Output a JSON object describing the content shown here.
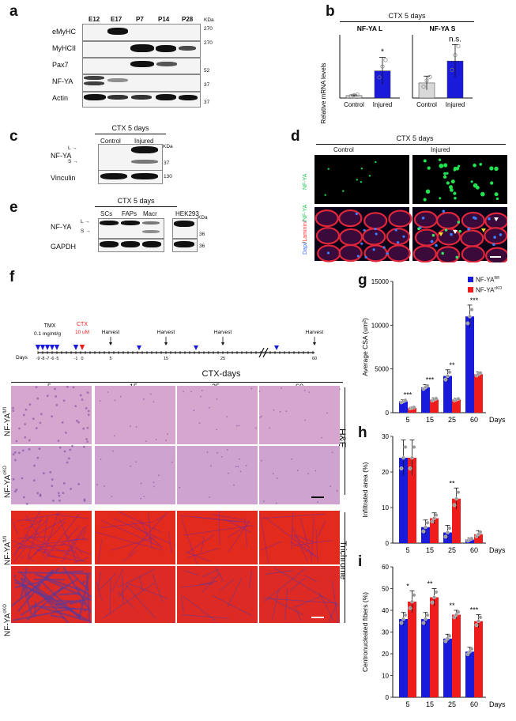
{
  "panel_labels": {
    "a": "a",
    "b": "b",
    "c": "c",
    "d": "d",
    "e": "e",
    "f": "f",
    "g": "g",
    "h": "h",
    "i": "i"
  },
  "panel_a": {
    "lanes": [
      "E12",
      "E17",
      "P7",
      "P14",
      "P28"
    ],
    "kda_label": "KDa",
    "rows": [
      "eMyHC",
      "MyHCII",
      "Pax7",
      "NF-YA",
      "Actin"
    ],
    "markers": [
      "270",
      "270",
      "52",
      "37",
      "37"
    ]
  },
  "panel_b": {
    "title": "CTX 5 days",
    "ylabel": "Relative mRNA levels"
  },
  "panel_c": {
    "title": "CTX 5 days",
    "lanes": [
      "Control",
      "Injured"
    ],
    "kda_label": "KDa",
    "rows": [
      "NF-YA",
      "Vinculin"
    ],
    "isoforms": [
      "L",
      "S"
    ],
    "markers": [
      "37",
      "130"
    ]
  },
  "panel_d": {
    "title": "CTX 5 days",
    "columns": [
      "Control",
      "Injured"
    ],
    "row_top": "NF-YA",
    "row_bottom_parts": [
      "Dapi",
      "/",
      "Laminin",
      "/",
      "NF-YA"
    ]
  },
  "panel_e": {
    "title": "CTX 5 days",
    "lanes": [
      "SCs",
      "FAPs",
      "Macr",
      "HEK293"
    ],
    "kda_label": "KDa",
    "rows": [
      "NF-YA",
      "GAPDH"
    ],
    "isoforms": [
      "L",
      "S"
    ],
    "markers": [
      "36",
      "36"
    ]
  },
  "panel_f_timeline": {
    "tmx": "TMX",
    "tmx_dose": "0.1 mg/ml/g",
    "ctx": "CTX",
    "ctx_dose": "10 uM",
    "harvest": "Harvest",
    "days_label": "Days",
    "day_ticks": [
      "-9",
      "-8",
      "-7",
      "-6",
      "-5",
      "-1",
      "0",
      "5",
      "15",
      "25",
      "60"
    ]
  },
  "panel_f_histo": {
    "title": "CTX-days",
    "columns": [
      "5",
      "15",
      "25",
      "60"
    ],
    "row_names": [
      "NF-YA",
      "NF-YA",
      "NF-YA",
      "NF-YA"
    ],
    "row_supers": [
      "fl/fl",
      "cKO",
      "fl/fl",
      "cKO"
    ],
    "stains": [
      "H&E",
      "Trichrome"
    ]
  },
  "colors": {
    "blue": "#1a1adb",
    "red": "#ee1c1c",
    "control_bar": "#d9d9d9",
    "he_pink": "#d9a9d1",
    "trichrome_red": "#e0201e"
  },
  "chart_data": [
    {
      "type": "bar",
      "panel": "b",
      "title": "NF-YA L",
      "categories": [
        "Control",
        "Injured"
      ],
      "values": [
        1.0,
        11.0
      ],
      "errors": [
        0.3,
        5.5
      ],
      "colors": [
        "#d9d9d9",
        "#1a1adb"
      ],
      "annotation": "*",
      "ylim": [
        0,
        25
      ],
      "ylabel": "Relative mRNA levels"
    },
    {
      "type": "bar",
      "panel": "b",
      "title": "NF-YA S",
      "categories": [
        "Control",
        "Injured"
      ],
      "values": [
        1.1,
        2.7
      ],
      "errors": [
        0.5,
        1.2
      ],
      "colors": [
        "#d9d9d9",
        "#1a1adb"
      ],
      "annotation": "n.s.",
      "ylim": [
        0,
        4.5
      ]
    },
    {
      "type": "bar",
      "panel": "g",
      "categories": [
        "5",
        "15",
        "25",
        "60"
      ],
      "series": [
        {
          "name": "NF-YA",
          "sup": "fl/fl",
          "values": [
            1300,
            2900,
            4200,
            11000
          ],
          "errors": [
            200,
            300,
            700,
            1300
          ]
        },
        {
          "name": "NF-YA",
          "sup": "cKO",
          "values": [
            550,
            1500,
            1500,
            4400
          ],
          "errors": [
            100,
            200,
            150,
            250
          ]
        }
      ],
      "annotations": [
        "***",
        "***",
        "**",
        "***"
      ],
      "ylabel": "Average CSA (um²)",
      "xlabel": "Days",
      "ylim": [
        0,
        15000
      ],
      "yticks": [
        0,
        5000,
        10000,
        15000
      ]
    },
    {
      "type": "bar",
      "panel": "h",
      "categories": [
        "5",
        "15",
        "25",
        "60"
      ],
      "series": [
        {
          "name": "NF-YA",
          "sup": "fl/fl",
          "values": [
            24,
            4.5,
            3,
            1
          ],
          "errors": [
            5,
            2,
            2,
            0.5
          ]
        },
        {
          "name": "NF-YA",
          "sup": "cKO",
          "values": [
            24,
            7,
            12.5,
            2.5
          ],
          "errors": [
            5,
            1.5,
            3,
            1
          ]
        }
      ],
      "annotations": [
        "",
        "",
        "**",
        ""
      ],
      "ylabel": "Infiltrated area (%)",
      "xlabel": "Days",
      "ylim": [
        0,
        30
      ],
      "yticks": [
        0,
        10,
        20,
        30
      ]
    },
    {
      "type": "bar",
      "panel": "i",
      "categories": [
        "5",
        "15",
        "25",
        "60"
      ],
      "series": [
        {
          "name": "NF-YA",
          "sup": "fl/fl",
          "values": [
            36,
            36,
            27,
            21
          ],
          "errors": [
            3,
            3,
            2,
            2
          ]
        },
        {
          "name": "NF-YA",
          "sup": "cKO",
          "values": [
            44,
            46,
            38,
            35
          ],
          "errors": [
            5,
            4,
            2,
            3
          ]
        }
      ],
      "annotations": [
        "*",
        "**",
        "**",
        "***"
      ],
      "ylabel": "Centronucleated fibers (%)",
      "xlabel": "Days",
      "ylim": [
        0,
        60
      ],
      "yticks": [
        0,
        10,
        20,
        30,
        40,
        50,
        60
      ]
    }
  ]
}
